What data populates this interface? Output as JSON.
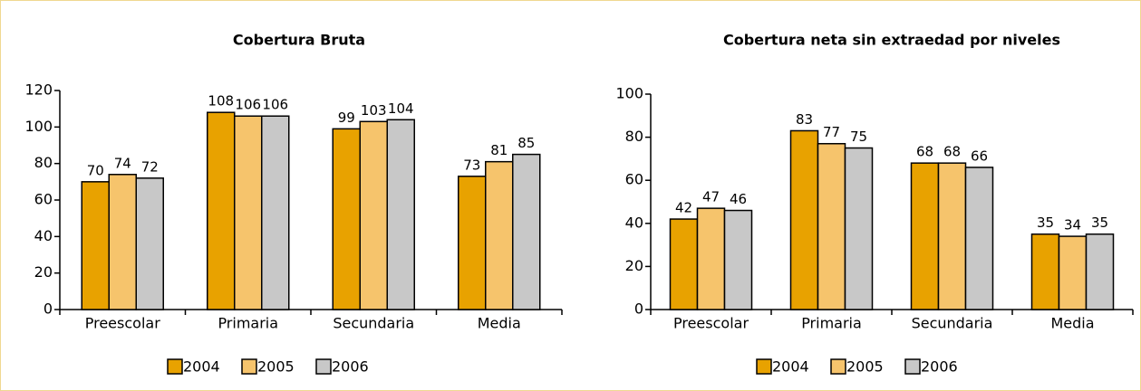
{
  "chart_data": [
    {
      "type": "bar",
      "title": "Cobertura Bruta",
      "categories": [
        "Preescolar",
        "Primaria",
        "Secundaria",
        "Media"
      ],
      "series": [
        {
          "name": "2004",
          "color": "#e8a200",
          "values": [
            70,
            108,
            99,
            73
          ]
        },
        {
          "name": "2005",
          "color": "#f6c46c",
          "values": [
            74,
            106,
            103,
            81
          ]
        },
        {
          "name": "2006",
          "color": "#c8c8c8",
          "values": [
            72,
            106,
            104,
            85
          ]
        }
      ],
      "ylim": [
        0,
        120
      ],
      "yticks": [
        0,
        20,
        40,
        60,
        80,
        100,
        120
      ],
      "grid": false
    },
    {
      "type": "bar",
      "title": "Cobertura neta sin extraedad por niveles",
      "categories": [
        "Preescolar",
        "Primaria",
        "Secundaria",
        "Media"
      ],
      "series": [
        {
          "name": "2004",
          "color": "#e8a200",
          "values": [
            42,
            83,
            68,
            35
          ]
        },
        {
          "name": "2005",
          "color": "#f6c46c",
          "values": [
            47,
            77,
            68,
            34
          ]
        },
        {
          "name": "2006",
          "color": "#c8c8c8",
          "values": [
            46,
            75,
            66,
            35
          ]
        }
      ],
      "ylim": [
        0,
        100
      ],
      "yticks": [
        0,
        20,
        40,
        60,
        80,
        100
      ],
      "grid": false
    }
  ]
}
